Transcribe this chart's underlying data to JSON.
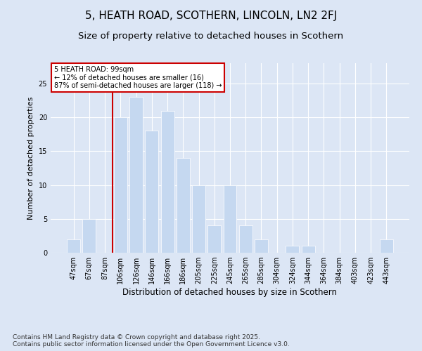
{
  "title": "5, HEATH ROAD, SCOTHERN, LINCOLN, LN2 2FJ",
  "subtitle": "Size of property relative to detached houses in Scothern",
  "xlabel": "Distribution of detached houses by size in Scothern",
  "ylabel": "Number of detached properties",
  "categories": [
    "47sqm",
    "67sqm",
    "87sqm",
    "106sqm",
    "126sqm",
    "146sqm",
    "166sqm",
    "186sqm",
    "205sqm",
    "225sqm",
    "245sqm",
    "265sqm",
    "285sqm",
    "304sqm",
    "324sqm",
    "344sqm",
    "364sqm",
    "384sqm",
    "403sqm",
    "423sqm",
    "443sqm"
  ],
  "values": [
    2,
    5,
    0,
    20,
    23,
    18,
    21,
    14,
    10,
    4,
    10,
    4,
    2,
    0,
    1,
    1,
    0,
    0,
    0,
    0,
    2
  ],
  "bar_color": "#c5d8f0",
  "bar_edge_color": "#ffffff",
  "vline_x_index": 2,
  "vline_color": "#cc0000",
  "annotation_text": "5 HEATH ROAD: 99sqm\n← 12% of detached houses are smaller (16)\n87% of semi-detached houses are larger (118) →",
  "annotation_box_color": "#ffffff",
  "annotation_box_edge": "#cc0000",
  "ylim": [
    0,
    28
  ],
  "yticks": [
    0,
    5,
    10,
    15,
    20,
    25
  ],
  "background_color": "#dce6f5",
  "footer": "Contains HM Land Registry data © Crown copyright and database right 2025.\nContains public sector information licensed under the Open Government Licence v3.0.",
  "title_fontsize": 11,
  "subtitle_fontsize": 9.5,
  "grid_color": "#ffffff",
  "footer_fontsize": 6.5
}
